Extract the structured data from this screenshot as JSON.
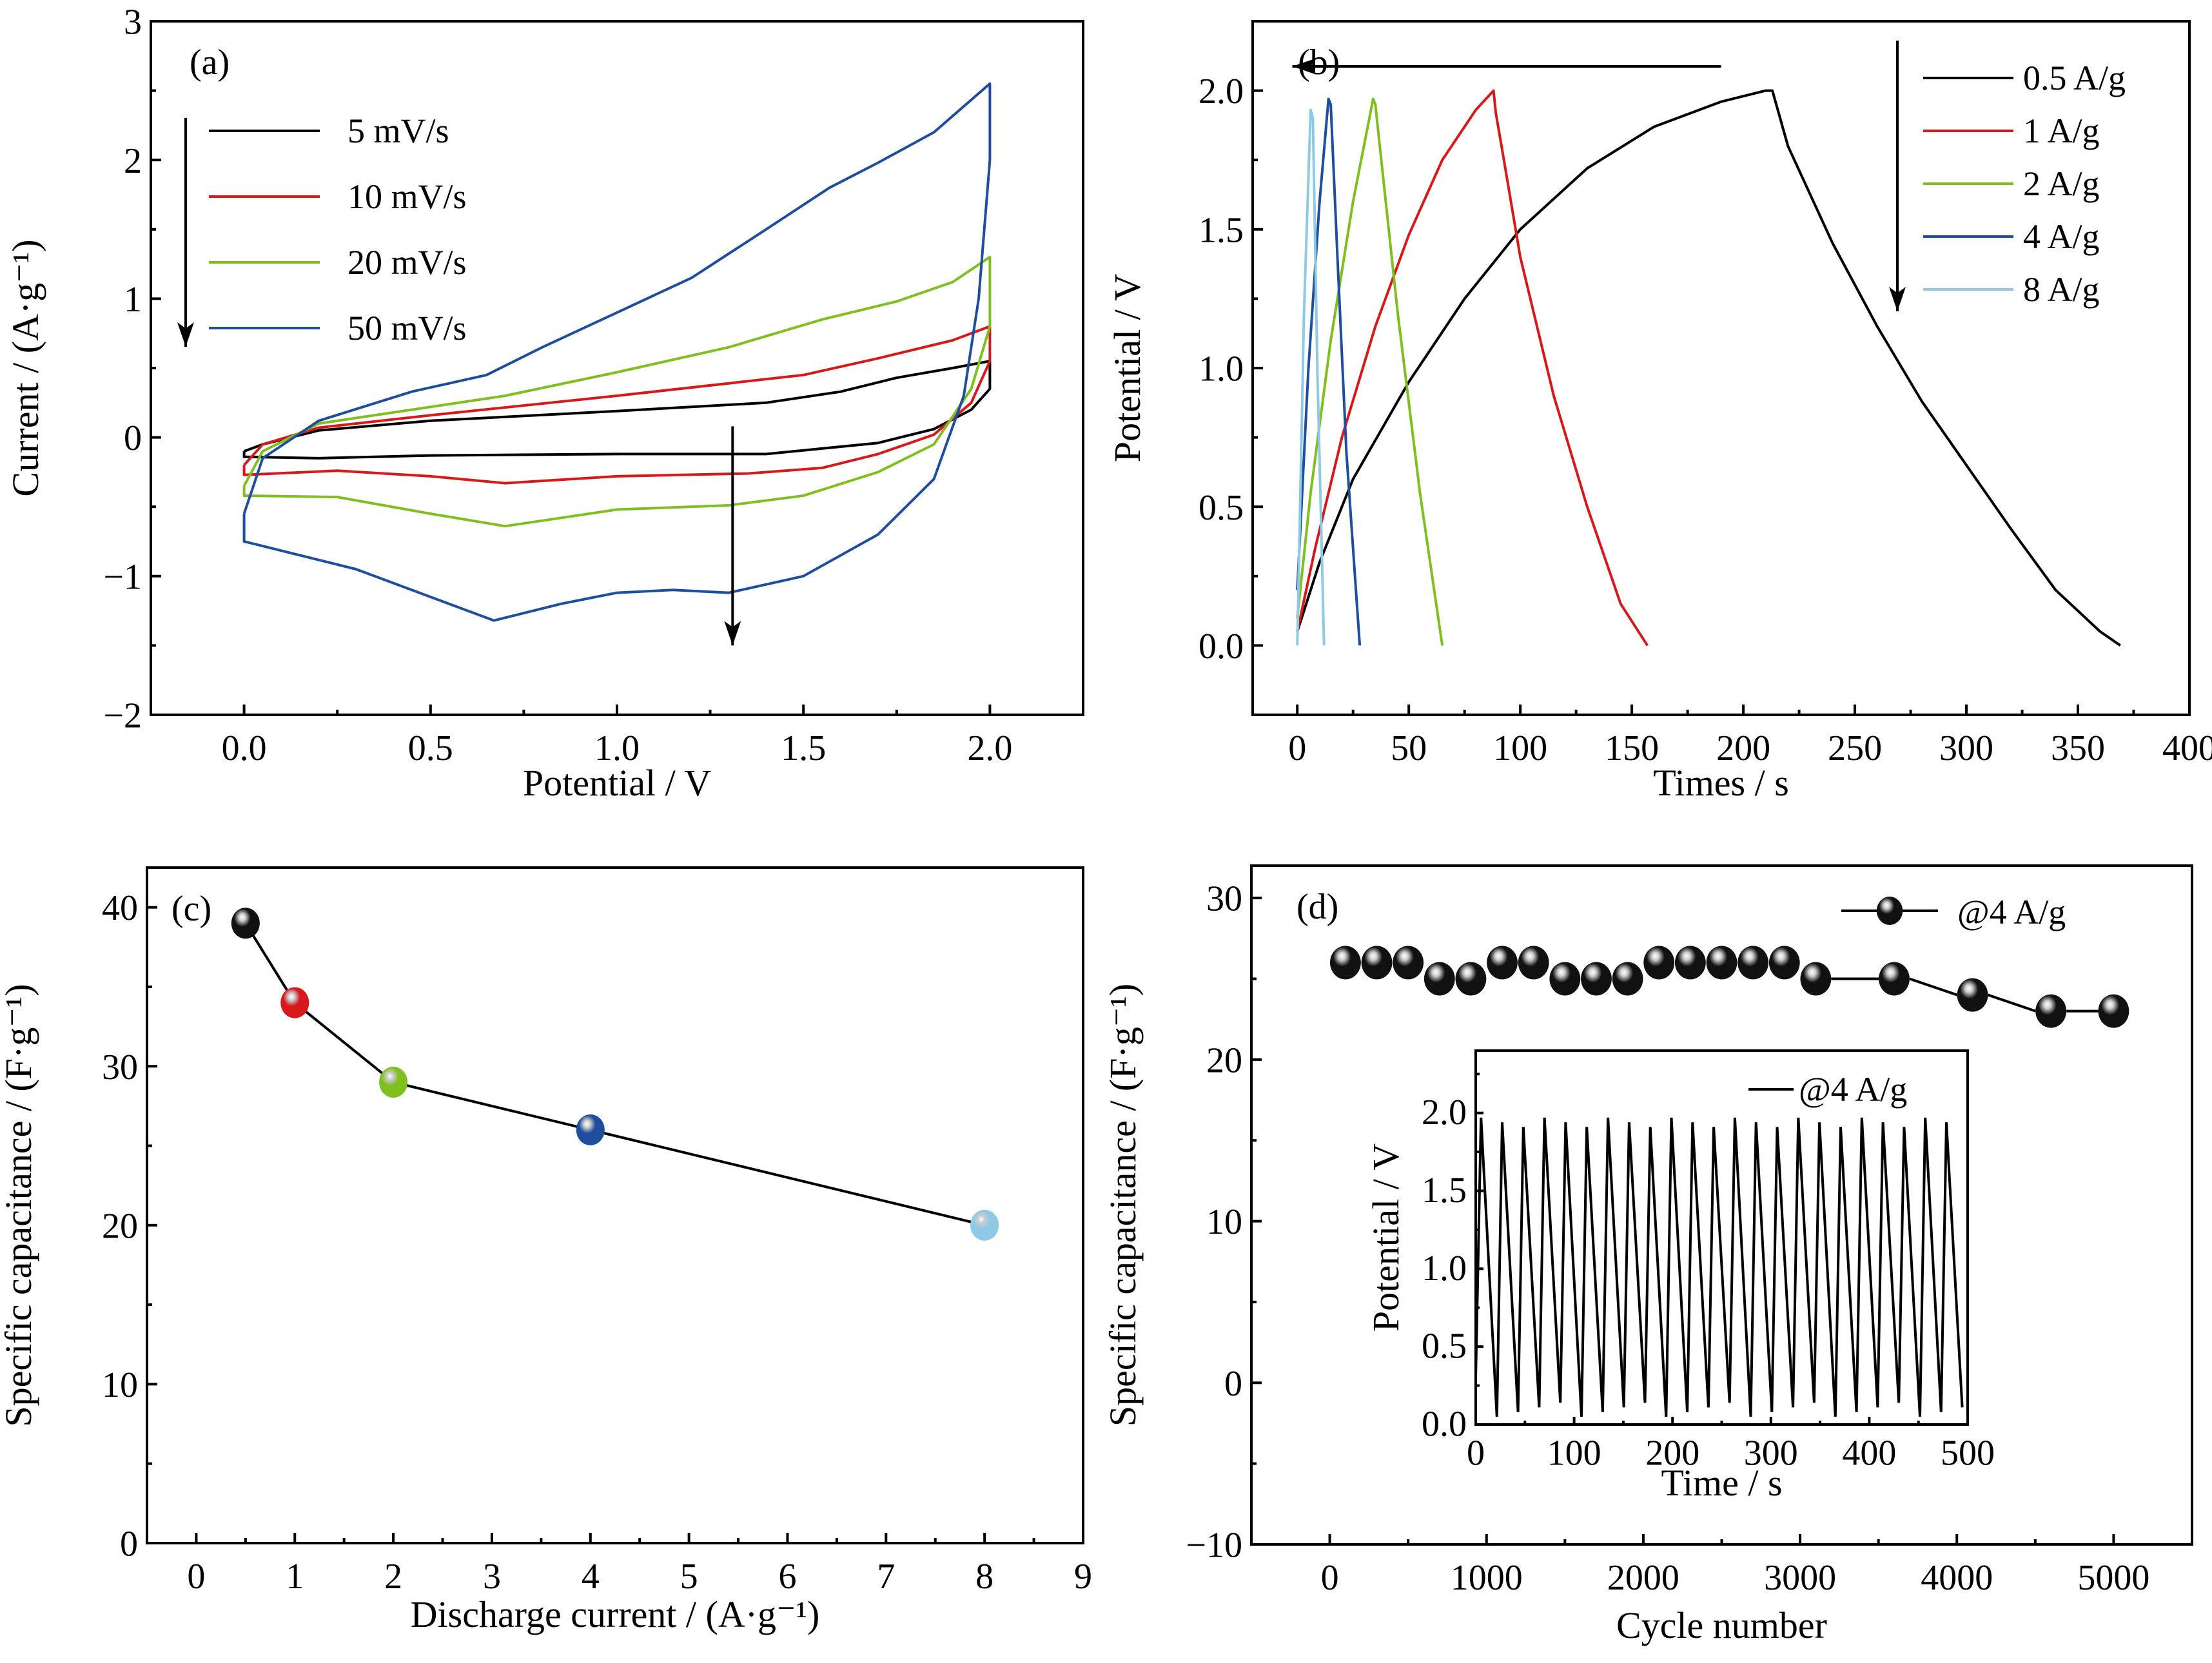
{
  "chart_data": [
    {
      "id": "a",
      "panel_label": "(a)",
      "type": "line",
      "title": "",
      "xlabel": "Potential / V",
      "ylabel": "Current / (A·g⁻¹)",
      "xlim": [
        -0.25,
        2.25
      ],
      "ylim": [
        -2,
        3
      ],
      "xticks": [
        0.0,
        0.5,
        1.0,
        1.5,
        2.0
      ],
      "xtick_labels": [
        "0.0",
        "0.5",
        "1.0",
        "1.5",
        "2.0"
      ],
      "yticks": [
        -2,
        -1,
        0,
        1,
        2,
        3
      ],
      "ytick_labels": [
        "−2",
        "−1",
        "0",
        "1",
        "2",
        "3"
      ],
      "legend_position": "upper-left",
      "annotation": "arrows indicate increasing scan rate",
      "series": [
        {
          "name": "5 mV/s",
          "color": "#000000",
          "x": [
            0.0,
            0.05,
            0.2,
            0.5,
            1.0,
            1.4,
            1.6,
            1.75,
            1.9,
            2.0,
            2.0,
            1.95,
            1.85,
            1.7,
            1.4,
            1.0,
            0.5,
            0.2,
            0.0,
            0.0
          ],
          "y": [
            -0.1,
            -0.05,
            0.05,
            0.12,
            0.19,
            0.25,
            0.33,
            0.43,
            0.5,
            0.55,
            0.35,
            0.2,
            0.06,
            -0.04,
            -0.12,
            -0.12,
            -0.13,
            -0.15,
            -0.14,
            -0.1
          ]
        },
        {
          "name": "10 mV/s",
          "color": "#d7191c",
          "x": [
            0.0,
            0.05,
            0.2,
            0.5,
            1.0,
            1.5,
            1.7,
            1.9,
            2.0,
            2.0,
            1.95,
            1.85,
            1.7,
            1.55,
            1.35,
            1.0,
            0.7,
            0.5,
            0.25,
            0.0,
            0.0
          ],
          "y": [
            -0.2,
            -0.05,
            0.07,
            0.16,
            0.3,
            0.45,
            0.57,
            0.7,
            0.8,
            0.55,
            0.25,
            0.02,
            -0.12,
            -0.22,
            -0.26,
            -0.28,
            -0.33,
            -0.28,
            -0.24,
            -0.27,
            -0.2
          ]
        },
        {
          "name": "20 mV/s",
          "color": "#7fbf1f",
          "x": [
            0.0,
            0.05,
            0.2,
            0.5,
            0.7,
            1.0,
            1.3,
            1.55,
            1.75,
            1.9,
            2.0,
            2.0,
            1.95,
            1.85,
            1.7,
            1.5,
            1.3,
            1.0,
            0.7,
            0.5,
            0.25,
            0.0,
            0.0
          ],
          "y": [
            -0.35,
            -0.1,
            0.1,
            0.22,
            0.3,
            0.47,
            0.65,
            0.85,
            0.98,
            1.12,
            1.3,
            0.8,
            0.35,
            -0.05,
            -0.25,
            -0.42,
            -0.49,
            -0.52,
            -0.64,
            -0.55,
            -0.43,
            -0.42,
            -0.35
          ]
        },
        {
          "name": "50 mV/s",
          "color": "#1f4e9e",
          "x": [
            0.0,
            0.05,
            0.2,
            0.45,
            0.65,
            0.8,
            1.0,
            1.2,
            1.4,
            1.57,
            1.7,
            1.85,
            2.0,
            2.0,
            1.97,
            1.93,
            1.85,
            1.7,
            1.5,
            1.3,
            1.15,
            1.0,
            0.85,
            0.67,
            0.5,
            0.3,
            0.0,
            0.0
          ],
          "y": [
            -0.55,
            -0.15,
            0.12,
            0.33,
            0.45,
            0.65,
            0.9,
            1.15,
            1.5,
            1.8,
            1.98,
            2.2,
            2.55,
            2.0,
            1.0,
            0.3,
            -0.3,
            -0.7,
            -1.0,
            -1.12,
            -1.1,
            -1.12,
            -1.2,
            -1.32,
            -1.15,
            -0.95,
            -0.75,
            -0.55
          ]
        }
      ]
    },
    {
      "id": "b",
      "panel_label": "(b)",
      "type": "line",
      "title": "",
      "xlabel": "Times / s",
      "ylabel": "Potential / V",
      "xlim": [
        -20,
        400
      ],
      "ylim": [
        -0.25,
        2.25
      ],
      "xticks": [
        0,
        50,
        100,
        150,
        200,
        250,
        300,
        350,
        400
      ],
      "xtick_labels": [
        "0",
        "50",
        "100",
        "150",
        "200",
        "250",
        "300",
        "350",
        "400"
      ],
      "yticks": [
        0.0,
        0.5,
        1.0,
        1.5,
        2.0
      ],
      "ytick_labels": [
        "0.0",
        "0.5",
        "1.0",
        "1.5",
        "2.0"
      ],
      "legend_position": "upper-right",
      "annotation": "arrows indicate increasing current density",
      "series": [
        {
          "name": "0.5 A/g",
          "color": "#000000",
          "x": [
            0,
            10,
            25,
            50,
            75,
            100,
            130,
            160,
            190,
            210,
            213,
            220,
            240,
            260,
            280,
            300,
            320,
            340,
            360,
            369
          ],
          "y": [
            0.05,
            0.3,
            0.6,
            0.95,
            1.25,
            1.5,
            1.72,
            1.87,
            1.96,
            2.0,
            2.0,
            1.8,
            1.45,
            1.15,
            0.88,
            0.65,
            0.42,
            0.2,
            0.05,
            0.0
          ]
        },
        {
          "name": "1 A/g",
          "color": "#d7191c",
          "x": [
            0,
            8,
            20,
            35,
            50,
            65,
            80,
            88,
            89,
            92,
            100,
            115,
            130,
            145,
            157
          ],
          "y": [
            0.05,
            0.35,
            0.75,
            1.15,
            1.48,
            1.75,
            1.93,
            2.0,
            1.92,
            1.78,
            1.4,
            0.9,
            0.5,
            0.15,
            0.0
          ]
        },
        {
          "name": "2 A/g",
          "color": "#7fbf1f",
          "x": [
            0,
            6,
            15,
            25,
            34,
            35,
            37,
            45,
            55,
            65
          ],
          "y": [
            0.1,
            0.55,
            1.1,
            1.6,
            1.97,
            1.95,
            1.8,
            1.2,
            0.55,
            0.0
          ]
        },
        {
          "name": "4 A/g",
          "color": "#1f4e9e",
          "x": [
            0,
            5,
            10,
            14,
            15,
            18,
            22,
            28
          ],
          "y": [
            0.2,
            1.0,
            1.6,
            1.97,
            1.95,
            1.4,
            0.7,
            0.0
          ]
        },
        {
          "name": "8 A/g",
          "color": "#8ecae6",
          "x": [
            0,
            3,
            6,
            7,
            9,
            12
          ],
          "y": [
            0.0,
            1.2,
            1.93,
            1.9,
            1.0,
            0.0
          ]
        }
      ]
    },
    {
      "id": "c",
      "panel_label": "(c)",
      "type": "scatter",
      "title": "",
      "xlabel": "Discharge current / (A·g⁻¹)",
      "ylabel": "Specific capacitance / (F·g⁻¹)",
      "xlim": [
        -0.5,
        9
      ],
      "ylim": [
        0,
        42.5
      ],
      "xticks": [
        0,
        1,
        2,
        3,
        4,
        5,
        6,
        7,
        8,
        9
      ],
      "xtick_labels": [
        "0",
        "1",
        "2",
        "3",
        "4",
        "5",
        "6",
        "7",
        "8",
        "9"
      ],
      "yticks": [
        0,
        10,
        20,
        30,
        40
      ],
      "ytick_labels": [
        "0",
        "10",
        "20",
        "30",
        "40"
      ],
      "points": [
        {
          "x": 0.5,
          "y": 39,
          "color": "#111111"
        },
        {
          "x": 1,
          "y": 34,
          "color": "#d7191c"
        },
        {
          "x": 2,
          "y": 29,
          "color": "#7fbf1f"
        },
        {
          "x": 4,
          "y": 26,
          "color": "#1f4e9e"
        },
        {
          "x": 8,
          "y": 20,
          "color": "#8ecae6"
        }
      ]
    },
    {
      "id": "d",
      "panel_label": "(d)",
      "type": "scatter",
      "title": "",
      "xlabel": "Cycle number",
      "ylabel": "Specific capacitance / (F·g⁻¹)",
      "xlim": [
        -500,
        5500
      ],
      "ylim": [
        -10,
        32
      ],
      "xticks": [
        0,
        1000,
        2000,
        3000,
        4000,
        5000
      ],
      "xtick_labels": [
        "0",
        "1000",
        "2000",
        "3000",
        "4000",
        "5000"
      ],
      "yticks": [
        -10,
        0,
        10,
        20,
        30
      ],
      "ytick_labels": [
        "−10",
        "0",
        "10",
        "20",
        "30"
      ],
      "legend": "@4 A/g",
      "legend_position": "upper-right",
      "x": [
        100,
        300,
        500,
        700,
        900,
        1100,
        1300,
        1500,
        1700,
        1900,
        2100,
        2300,
        2500,
        2700,
        2900,
        3100,
        3600,
        4100,
        4600,
        5000
      ],
      "y": [
        26,
        26,
        26,
        25,
        25,
        26,
        26,
        25,
        25,
        25,
        26,
        26,
        26,
        26,
        26,
        25,
        25,
        24,
        23,
        23
      ],
      "inset": {
        "type": "line",
        "xlabel": "Time / s",
        "ylabel": "Potential / V",
        "xlim": [
          0,
          500
        ],
        "ylim": [
          0,
          2.4
        ],
        "xticks": [
          0,
          100,
          200,
          300,
          400,
          500
        ],
        "xtick_labels": [
          "0",
          "100",
          "200",
          "300",
          "400",
          "500"
        ],
        "yticks": [
          0.0,
          0.5,
          1.0,
          1.5,
          2.0
        ],
        "ytick_labels": [
          "0.0",
          "0.5",
          "1.0",
          "1.5",
          "2.0"
        ],
        "legend": "@4 A/g",
        "legend_position": "upper-right",
        "cycle_count": 23,
        "cycle_period_s": 21.5,
        "peak_potential": 1.97,
        "min_potential": 0.05
      }
    }
  ]
}
